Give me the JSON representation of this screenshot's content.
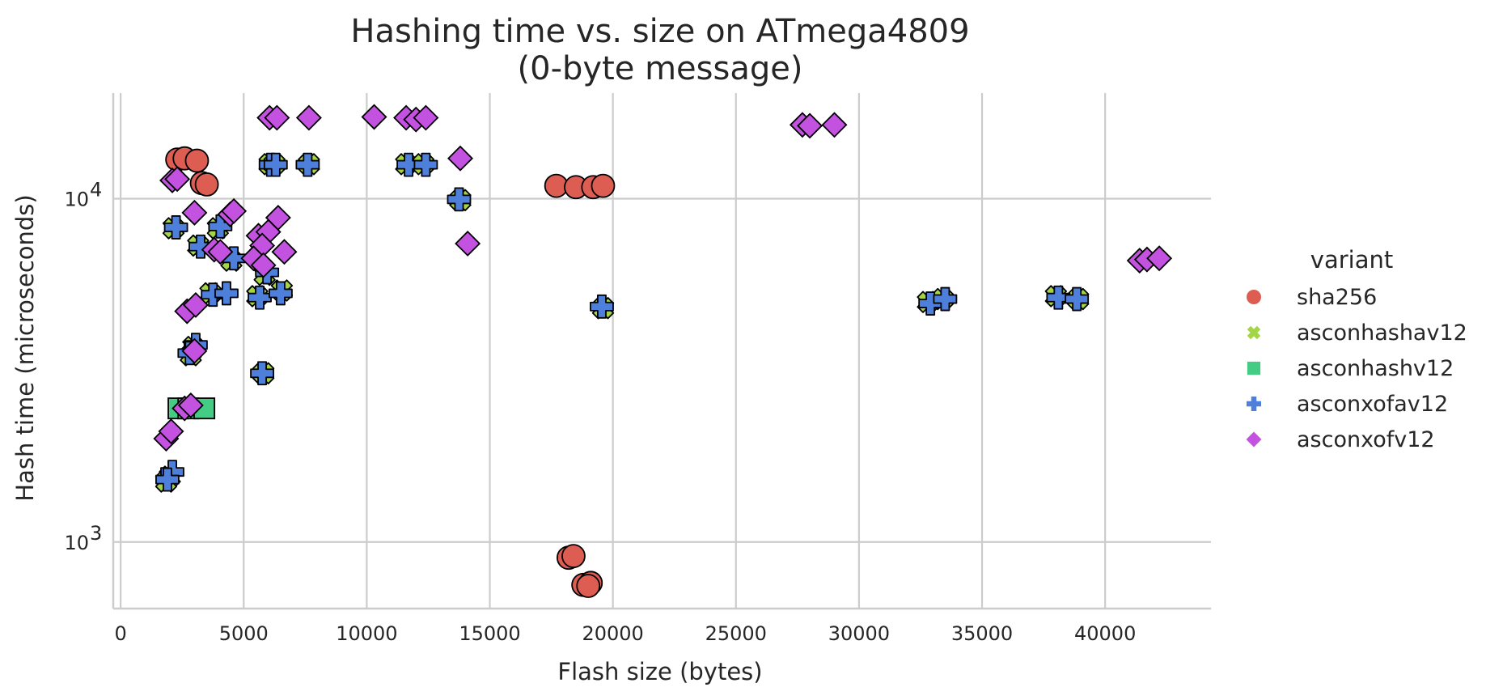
{
  "chart_data": {
    "type": "scatter",
    "title": "Hashing time vs. size on ATmega4809",
    "subtitle": "(0-byte message)",
    "xlabel": "Flash size (bytes)",
    "ylabel": "Hash time (microseconds)",
    "xlim": [
      -300,
      44300
    ],
    "ylim": [
      640,
      20300
    ],
    "yscale": "log",
    "xticks": [
      0,
      5000,
      10000,
      15000,
      20000,
      25000,
      30000,
      35000,
      40000
    ],
    "xtick_labels": [
      "0",
      "5000",
      "10000",
      "15000",
      "20000",
      "25000",
      "30000",
      "35000",
      "40000"
    ],
    "yticks": [
      1000,
      10000
    ],
    "ytick_labels": [
      {
        "base": "10",
        "exp": "3"
      },
      {
        "base": "10",
        "exp": "4"
      }
    ],
    "grid": true,
    "legend": {
      "title": "variant",
      "position": "right"
    },
    "series": [
      {
        "name": "sha256",
        "color": "#dd5d53",
        "marker": "circle",
        "points": [
          [
            2300,
            13000
          ],
          [
            2600,
            13100
          ],
          [
            3100,
            12900
          ],
          [
            3300,
            11100
          ],
          [
            3500,
            11000
          ],
          [
            17700,
            10900
          ],
          [
            18500,
            10800
          ],
          [
            19200,
            10800
          ],
          [
            19600,
            10900
          ],
          [
            18200,
            900
          ],
          [
            18400,
            910
          ],
          [
            18800,
            750
          ],
          [
            19100,
            760
          ],
          [
            19000,
            745
          ]
        ]
      },
      {
        "name": "asconhashav12",
        "color": "#a3d545",
        "marker": "x",
        "points": [
          [
            2150,
            8200
          ],
          [
            3150,
            7300
          ],
          [
            3950,
            8200
          ],
          [
            4500,
            6600
          ],
          [
            5550,
            5200
          ],
          [
            5850,
            6000
          ],
          [
            6550,
            5400
          ],
          [
            3650,
            5300
          ],
          [
            6050,
            12600
          ],
          [
            6250,
            12600
          ],
          [
            7650,
            12600
          ],
          [
            11600,
            12600
          ],
          [
            12300,
            12600
          ],
          [
            13800,
            9900
          ],
          [
            19600,
            4800
          ],
          [
            5800,
            3100
          ],
          [
            2950,
            3700
          ],
          [
            2850,
            3500
          ],
          [
            2000,
            1550
          ],
          [
            1850,
            1500
          ],
          [
            32800,
            5000
          ],
          [
            33400,
            5100
          ],
          [
            38000,
            5200
          ],
          [
            38900,
            5100
          ]
        ]
      },
      {
        "name": "asconhashv12",
        "color": "#44cb84",
        "marker": "square",
        "points": [
          [
            2350,
            2450
          ],
          [
            2750,
            2450
          ],
          [
            3400,
            2450
          ]
        ]
      },
      {
        "name": "asconxofav12",
        "color": "#4e7fdb",
        "marker": "plus",
        "points": [
          [
            2250,
            8250
          ],
          [
            3250,
            7250
          ],
          [
            4050,
            8300
          ],
          [
            4600,
            6700
          ],
          [
            5650,
            5150
          ],
          [
            5950,
            6100
          ],
          [
            6500,
            5300
          ],
          [
            3750,
            5250
          ],
          [
            4300,
            5300
          ],
          [
            6100,
            12550
          ],
          [
            6300,
            12550
          ],
          [
            7600,
            12550
          ],
          [
            11700,
            12550
          ],
          [
            12400,
            12550
          ],
          [
            13750,
            9950
          ],
          [
            19550,
            4850
          ],
          [
            5750,
            3100
          ],
          [
            3050,
            3750
          ],
          [
            2800,
            3550
          ],
          [
            2100,
            1600
          ],
          [
            1900,
            1520
          ],
          [
            32900,
            4950
          ],
          [
            33500,
            5100
          ],
          [
            38100,
            5150
          ],
          [
            38850,
            5100
          ]
        ]
      },
      {
        "name": "asconxofv12",
        "color": "#c452e0",
        "marker": "diamond",
        "points": [
          [
            2100,
            11300
          ],
          [
            2300,
            11400
          ],
          [
            3000,
            9100
          ],
          [
            4450,
            9000
          ],
          [
            4600,
            9200
          ],
          [
            6400,
            8800
          ],
          [
            5600,
            7800
          ],
          [
            6000,
            8000
          ],
          [
            3800,
            7100
          ],
          [
            4050,
            7000
          ],
          [
            5750,
            7300
          ],
          [
            6650,
            7000
          ],
          [
            5400,
            6700
          ],
          [
            5800,
            6400
          ],
          [
            2700,
            4700
          ],
          [
            3050,
            4900
          ],
          [
            3000,
            3600
          ],
          [
            2600,
            2450
          ],
          [
            2850,
            2500
          ],
          [
            1850,
            2000
          ],
          [
            2050,
            2100
          ],
          [
            6050,
            17200
          ],
          [
            6350,
            17200
          ],
          [
            7650,
            17200
          ],
          [
            10300,
            17300
          ],
          [
            11600,
            17200
          ],
          [
            12000,
            17000
          ],
          [
            12400,
            17200
          ],
          [
            13800,
            13100
          ],
          [
            14100,
            7400
          ],
          [
            27700,
            16400
          ],
          [
            28000,
            16300
          ],
          [
            29000,
            16400
          ],
          [
            41400,
            6600
          ],
          [
            41700,
            6650
          ],
          [
            42200,
            6700
          ]
        ]
      }
    ]
  }
}
